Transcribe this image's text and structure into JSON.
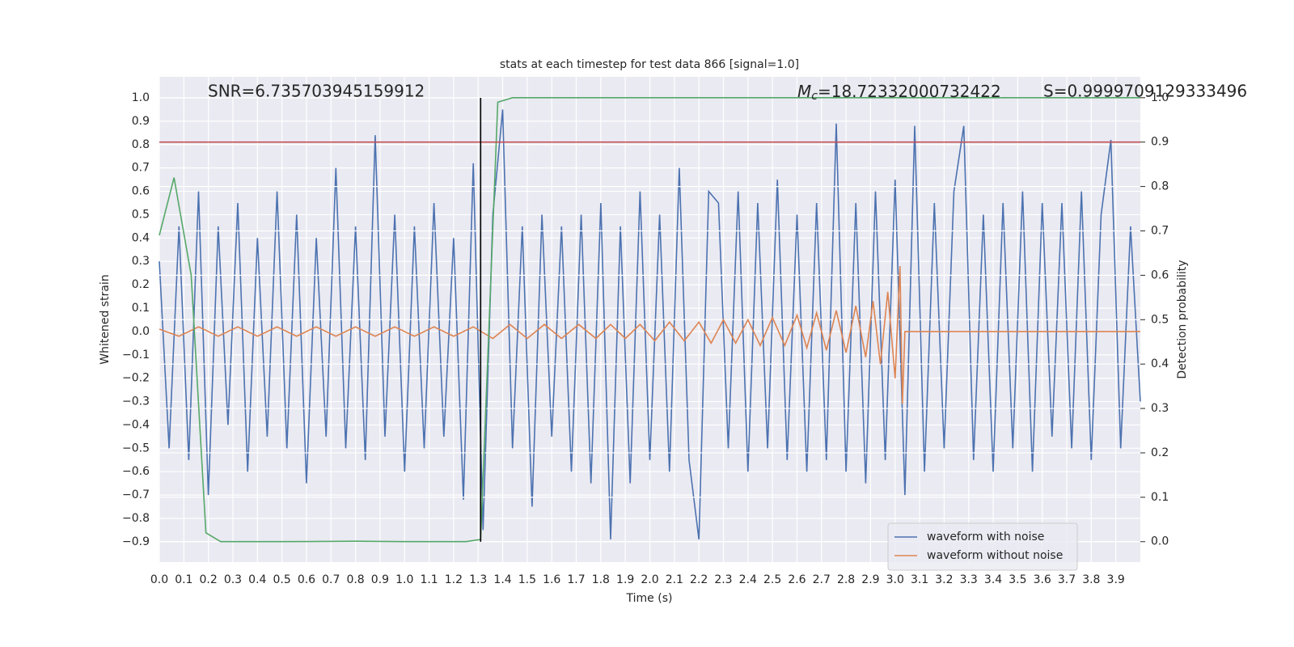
{
  "chart_data": {
    "type": "line",
    "title": "stats at each timestep for test data 866 [signal=1.0]",
    "x_label": "Time (s)",
    "y_label": "Whitened strain",
    "y2_label": "Detection probability",
    "annotations": {
      "snr": "SNR=6.735703945159912",
      "mc_symbol": "M",
      "mc_subscript": "c",
      "mc_text": "=18.72332000732422",
      "s": "S=0.9999709129333496"
    },
    "grid": true,
    "legend": "lower right",
    "xlim": [
      0,
      4.0
    ],
    "ylim": [
      -0.987,
      1.09
    ],
    "y2lim": [
      -0.046,
      1.047
    ],
    "xticks": [
      {
        "value": 0,
        "label": "0.0"
      },
      0.1,
      0.2,
      0.3,
      0.4,
      0.5,
      0.6,
      0.7,
      0.8,
      0.9,
      {
        "value": 1,
        "label": "1.0"
      },
      1.1,
      1.2,
      1.3,
      1.4,
      1.5,
      1.6,
      1.7,
      1.8,
      1.9,
      {
        "value": 2,
        "label": "2.0"
      },
      2.1,
      2.2,
      2.3,
      2.4,
      2.5,
      2.6,
      2.7,
      2.8,
      2.9,
      {
        "value": 3,
        "label": "3.0"
      },
      3.1,
      3.2,
      3.3,
      3.4,
      3.5,
      3.6,
      3.7,
      3.8,
      3.9
    ],
    "yticks": [
      {
        "value": -0.9,
        "label": "−0.9"
      },
      {
        "value": -0.8,
        "label": "−0.8"
      },
      {
        "value": -0.7,
        "label": "−0.7"
      },
      {
        "value": -0.6,
        "label": "−0.6"
      },
      {
        "value": -0.5,
        "label": "−0.5"
      },
      {
        "value": -0.4,
        "label": "−0.4"
      },
      {
        "value": -0.3,
        "label": "−0.3"
      },
      {
        "value": -0.2,
        "label": "−0.2"
      },
      {
        "value": -0.1,
        "label": "−0.1"
      },
      {
        "value": 0,
        "label": "0.0"
      },
      0.1,
      0.2,
      0.3,
      0.4,
      0.5,
      0.6,
      0.7,
      0.8,
      0.9,
      {
        "value": 1,
        "label": "1.0"
      }
    ],
    "y2ticks": [
      {
        "value": 0,
        "label": "0.0"
      },
      0.1,
      0.2,
      0.3,
      0.4,
      0.5,
      0.6,
      0.7,
      0.8,
      0.9,
      {
        "value": 1,
        "label": "1.0"
      }
    ],
    "series": [
      {
        "name": "waveform with noise",
        "color": "#4c72b0",
        "x": [
          0,
          0.04,
          0.08,
          0.12,
          0.16,
          0.2,
          0.24,
          0.28,
          0.32,
          0.36,
          0.4,
          0.44,
          0.48,
          0.52,
          0.56,
          0.6,
          0.64,
          0.68,
          0.72,
          0.76,
          0.8,
          0.84,
          0.88,
          0.92,
          0.96,
          1,
          1.04,
          1.08,
          1.12,
          1.16,
          1.2,
          1.24,
          1.28,
          1.32,
          1.36,
          1.4,
          1.44,
          1.48,
          1.52,
          1.56,
          1.6,
          1.64,
          1.68,
          1.72,
          1.76,
          1.8,
          1.84,
          1.88,
          1.92,
          1.96,
          2,
          2.04,
          2.08,
          2.12,
          2.16,
          2.2,
          2.24,
          2.28,
          2.32,
          2.36,
          2.4,
          2.44,
          2.48,
          2.52,
          2.56,
          2.6,
          2.64,
          2.68,
          2.72,
          2.76,
          2.8,
          2.84,
          2.88,
          2.92,
          2.96,
          3,
          3.04,
          3.08,
          3.12,
          3.16,
          3.2,
          3.24,
          3.28,
          3.32,
          3.36,
          3.4,
          3.44,
          3.48,
          3.52,
          3.56,
          3.6,
          3.64,
          3.68,
          3.72,
          3.76,
          3.8,
          3.84,
          3.88,
          3.92,
          3.96,
          4
        ],
        "values": [
          0.3,
          -0.5,
          0.45,
          -0.55,
          0.6,
          -0.7,
          0.45,
          -0.4,
          0.55,
          -0.6,
          0.4,
          -0.45,
          0.6,
          -0.5,
          0.5,
          -0.65,
          0.4,
          -0.45,
          0.7,
          -0.5,
          0.45,
          -0.55,
          0.84,
          -0.45,
          0.5,
          -0.6,
          0.45,
          -0.5,
          0.55,
          -0.45,
          0.4,
          -0.72,
          0.72,
          -0.85,
          0.5,
          0.95,
          -0.5,
          0.45,
          -0.75,
          0.5,
          -0.45,
          0.45,
          -0.6,
          0.5,
          -0.65,
          0.55,
          -0.89,
          0.45,
          -0.65,
          0.6,
          -0.55,
          0.5,
          -0.6,
          0.7,
          -0.55,
          -0.89,
          0.6,
          0.55,
          -0.5,
          0.6,
          -0.6,
          0.55,
          -0.5,
          0.65,
          -0.55,
          0.5,
          -0.6,
          0.55,
          -0.55,
          0.89,
          -0.6,
          0.55,
          -0.65,
          0.6,
          -0.55,
          0.65,
          -0.7,
          0.88,
          -0.6,
          0.55,
          -0.5,
          0.6,
          0.88,
          -0.55,
          0.5,
          -0.6,
          0.55,
          -0.5,
          0.6,
          -0.6,
          0.55,
          -0.45,
          0.55,
          -0.5,
          0.6,
          -0.55,
          0.5,
          0.82,
          -0.5,
          0.45,
          -0.3
        ]
      },
      {
        "name": "waveform without noise",
        "color": "#dd8452",
        "x": [
          0,
          0.08,
          0.16,
          0.24,
          0.32,
          0.4,
          0.48,
          0.56,
          0.64,
          0.72,
          0.8,
          0.88,
          0.96,
          1.04,
          1.12,
          1.2,
          1.28,
          1.36,
          1.43,
          1.5,
          1.57,
          1.64,
          1.71,
          1.78,
          1.84,
          1.9,
          1.96,
          2.02,
          2.08,
          2.14,
          2.2,
          2.25,
          2.3,
          2.35,
          2.4,
          2.45,
          2.5,
          2.55,
          2.6,
          2.64,
          2.68,
          2.72,
          2.76,
          2.8,
          2.84,
          2.88,
          2.91,
          2.94,
          2.97,
          3,
          3.02,
          3.03,
          3.04,
          4
        ],
        "values": [
          0.01,
          -0.02,
          0.02,
          -0.02,
          0.02,
          -0.02,
          0.02,
          -0.02,
          0.02,
          -0.02,
          0.02,
          -0.02,
          0.02,
          -0.02,
          0.02,
          -0.02,
          0.02,
          -0.03,
          0.03,
          -0.03,
          0.03,
          -0.03,
          0.03,
          -0.03,
          0.03,
          -0.03,
          0.03,
          -0.04,
          0.04,
          -0.04,
          0.04,
          -0.05,
          0.05,
          -0.05,
          0.05,
          -0.06,
          0.06,
          -0.06,
          0.07,
          -0.07,
          0.08,
          -0.08,
          0.09,
          -0.09,
          0.11,
          -0.11,
          0.13,
          -0.14,
          0.17,
          -0.2,
          0.28,
          -0.31,
          0,
          0
        ]
      },
      {
        "color": "#55a868",
        "axis": "y2",
        "x": [
          0,
          0.06,
          0.13,
          0.19,
          0.25,
          0.5,
          0.8,
          1.0,
          1.25,
          1.31,
          1.38,
          1.44,
          4.0
        ],
        "values": [
          0.69,
          0.82,
          0.6,
          0.02,
          0.0,
          0.0,
          0.001,
          0.0,
          0.0,
          0.005,
          0.99,
          1.0,
          1.0
        ]
      },
      {
        "color": "#c44e52",
        "axis": "y2",
        "x": [
          0,
          4.0
        ],
        "values": [
          0.9,
          0.9
        ]
      },
      {
        "color": "#000000",
        "x": [
          1.31,
          1.31
        ],
        "values": [
          -0.9,
          1.0
        ]
      }
    ]
  }
}
